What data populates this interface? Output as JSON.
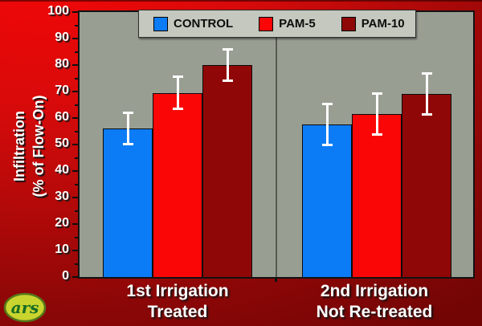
{
  "chart_data": {
    "type": "bar",
    "title": "",
    "ylabel_lines": [
      "Infiltration",
      "(% of Flow-On)"
    ],
    "ylim": [
      0,
      100
    ],
    "ytick_step": 10,
    "yminor_step": 5,
    "grid": false,
    "legend_position": "top",
    "plot_bg": "#999e93",
    "error_bar_color": "#ffffff",
    "categories": [
      [
        "1st Irrigation",
        "Treated"
      ],
      [
        "2nd Irrigation",
        "Not Re-treated"
      ]
    ],
    "series": [
      {
        "name": "CONTROL",
        "color": "#0b7cf6",
        "values": [
          56,
          57.5
        ],
        "errors": [
          6.3,
          8.2
        ]
      },
      {
        "name": "PAM-5",
        "color": "#fb0606",
        "values": [
          69.5,
          61.5
        ],
        "errors": [
          6.5,
          8.1
        ]
      },
      {
        "name": "PAM-10",
        "color": "#900707",
        "values": [
          80,
          69
        ],
        "errors": [
          6.5,
          8.2
        ]
      }
    ]
  },
  "logo": {
    "text": "ars"
  }
}
